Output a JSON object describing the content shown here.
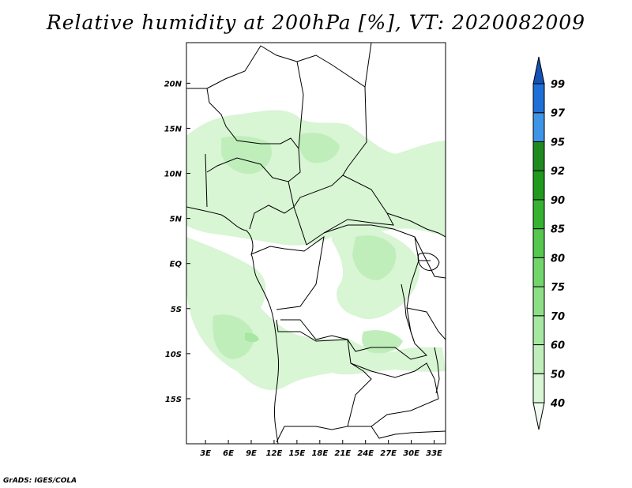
{
  "title": "Relative humidity at 200hPa [%], VT: 2020082009",
  "credit": "GrADS: IGES/COLA",
  "lat_labels": [
    "20N",
    "15N",
    "10N",
    "5N",
    "EQ",
    "5S",
    "10S",
    "15S"
  ],
  "lat_values": [
    20,
    15,
    10,
    5,
    0,
    -5,
    -10,
    -15
  ],
  "lon_labels": [
    "3E",
    "6E",
    "9E",
    "12E",
    "15E",
    "18E",
    "21E",
    "24E",
    "27E",
    "30E",
    "33E"
  ],
  "lon_values": [
    3,
    6,
    9,
    12,
    15,
    18,
    21,
    24,
    27,
    30,
    33
  ],
  "extent": {
    "lon": [
      0.5,
      34.5
    ],
    "lat": [
      -20,
      24.5
    ]
  },
  "colorbar": {
    "levels": [
      40,
      50,
      60,
      70,
      75,
      80,
      85,
      90,
      92,
      95,
      97,
      99
    ],
    "colors": [
      "#f0fcf0",
      "#d8f5d4",
      "#bfeebb",
      "#a6e7a2",
      "#8ddf87",
      "#72d56c",
      "#55c74f",
      "#36b231",
      "#1f9a1c",
      "#1f8a1f",
      "#3c95e6",
      "#1e6fd6",
      "#1451b8"
    ]
  }
}
